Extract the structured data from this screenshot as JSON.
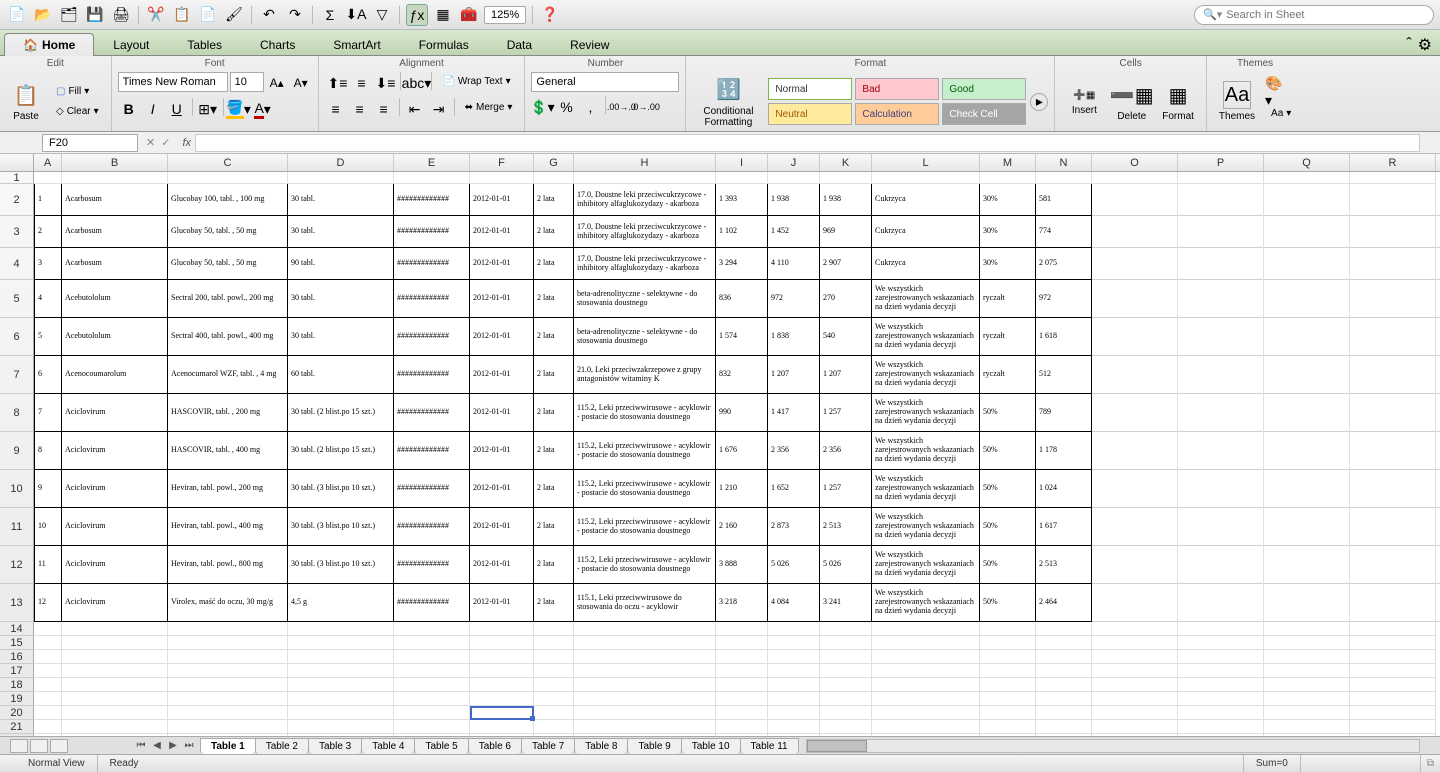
{
  "toolbar": {
    "zoom": "125%",
    "search_placeholder": "Search in Sheet"
  },
  "ribbon": {
    "tabs": [
      "Home",
      "Layout",
      "Tables",
      "Charts",
      "SmartArt",
      "Formulas",
      "Data",
      "Review"
    ],
    "active_tab": 0,
    "groups": {
      "edit": "Edit",
      "font": "Font",
      "alignment": "Alignment",
      "number": "Number",
      "format": "Format",
      "cells": "Cells",
      "themes": "Themes"
    },
    "paste": "Paste",
    "fill": "Fill",
    "clear": "Clear",
    "font_name": "Times New Roman",
    "font_size": "10",
    "wrap_text": "Wrap Text",
    "merge": "Merge",
    "number_format": "General",
    "cond_fmt": "Conditional Formatting",
    "styles": {
      "normal": "Normal",
      "bad": "Bad",
      "good": "Good",
      "neutral": "Neutral",
      "calc": "Calculation",
      "check": "Check Cell"
    },
    "insert": "Insert",
    "delete": "Delete",
    "format_btn": "Format",
    "themes_btn": "Themes",
    "aa": "Aa"
  },
  "formula": {
    "name_box": "F20",
    "fx": "fx"
  },
  "columns": [
    {
      "l": "A",
      "w": 28
    },
    {
      "l": "B",
      "w": 106
    },
    {
      "l": "C",
      "w": 120
    },
    {
      "l": "D",
      "w": 106
    },
    {
      "l": "E",
      "w": 76
    },
    {
      "l": "F",
      "w": 64
    },
    {
      "l": "G",
      "w": 40
    },
    {
      "l": "H",
      "w": 142
    },
    {
      "l": "I",
      "w": 52
    },
    {
      "l": "J",
      "w": 52
    },
    {
      "l": "K",
      "w": 52
    },
    {
      "l": "L",
      "w": 108
    },
    {
      "l": "M",
      "w": 56
    },
    {
      "l": "N",
      "w": 56
    },
    {
      "l": "O",
      "w": 86
    },
    {
      "l": "P",
      "w": 86
    },
    {
      "l": "Q",
      "w": 86
    },
    {
      "l": "R",
      "w": 86
    }
  ],
  "row_meta": [
    {
      "n": 1,
      "h": 12
    },
    {
      "n": 2,
      "h": 32
    },
    {
      "n": 3,
      "h": 32
    },
    {
      "n": 4,
      "h": 32
    },
    {
      "n": 5,
      "h": 38
    },
    {
      "n": 6,
      "h": 38
    },
    {
      "n": 7,
      "h": 38
    },
    {
      "n": 8,
      "h": 38
    },
    {
      "n": 9,
      "h": 38
    },
    {
      "n": 10,
      "h": 38
    },
    {
      "n": 11,
      "h": 38
    },
    {
      "n": 12,
      "h": 38
    },
    {
      "n": 13,
      "h": 38
    },
    {
      "n": 14,
      "h": 14
    },
    {
      "n": 15,
      "h": 14
    },
    {
      "n": 16,
      "h": 14
    },
    {
      "n": 17,
      "h": 14
    },
    {
      "n": 18,
      "h": 14
    },
    {
      "n": 19,
      "h": 14
    },
    {
      "n": 20,
      "h": 14
    },
    {
      "n": 21,
      "h": 14
    },
    {
      "n": 22,
      "h": 14
    }
  ],
  "data_rows": [
    {
      "r": 2,
      "A": "1",
      "B": "Acarbosum",
      "C": "Glucobay 100, tabl. , 100 mg",
      "D": "30 tabl.",
      "E": "#############",
      "F": "2012-01-01",
      "G": "2 lata",
      "H": "17.0, Doustne leki przeciwcukrzycowe - inhibitory alfaglukozydazy - akarboza",
      "I": "1 393",
      "J": "1 938",
      "K": "1 938",
      "L": "Cukrzyca",
      "M": "30%",
      "N": "581"
    },
    {
      "r": 3,
      "A": "2",
      "B": "Acarbosum",
      "C": "Glucobay 50, tabl. , 50 mg",
      "D": "30 tabl.",
      "E": "#############",
      "F": "2012-01-01",
      "G": "2 lata",
      "H": "17.0, Doustne leki przeciwcukrzycowe - inhibitory alfaglukozydazy - akarboza",
      "I": "1 102",
      "J": "1 452",
      "K": "969",
      "L": "Cukrzyca",
      "M": "30%",
      "N": "774"
    },
    {
      "r": 4,
      "A": "3",
      "B": "Acarbosum",
      "C": "Glucobay 50, tabl. , 50 mg",
      "D": "90 tabl.",
      "E": "#############",
      "F": "2012-01-01",
      "G": "2 lata",
      "H": "17.0, Doustne leki przeciwcukrzycowe - inhibitory alfaglukozydazy - akarboza",
      "I": "3 294",
      "J": "4 110",
      "K": "2 907",
      "L": "Cukrzyca",
      "M": "30%",
      "N": "2 075"
    },
    {
      "r": 5,
      "A": "4",
      "B": "Acebutololum",
      "C": "Sectral 200, tabl. powl., 200 mg",
      "D": "30 tabl.",
      "E": "#############",
      "F": "2012-01-01",
      "G": "2 lata",
      "H": "beta-adrenolityczne - selektywne - do stosowania doustnego",
      "I": "836",
      "J": "972",
      "K": "270",
      "L": "We wszystkich zarejestrowanych wskazaniach na dzień wydania decyzji",
      "M": "ryczałt",
      "N": "972"
    },
    {
      "r": 6,
      "A": "5",
      "B": "Acebutololum",
      "C": "Sectral 400, tabl. powl., 400 mg",
      "D": "30 tabl.",
      "E": "#############",
      "F": "2012-01-01",
      "G": "2 lata",
      "H": "beta-adrenolityczne - selektywne - do stosowania doustnego",
      "I": "1 574",
      "J": "1 838",
      "K": "540",
      "L": "We wszystkich zarejestrowanych wskazaniach na dzień wydania decyzji",
      "M": "ryczałt",
      "N": "1 618"
    },
    {
      "r": 7,
      "A": "6",
      "B": "Acenocoumarolum",
      "C": "Acenocumarol WZF, tabl. , 4 mg",
      "D": "60 tabl.",
      "E": "#############",
      "F": "2012-01-01",
      "G": "2 lata",
      "H": "21.0, Leki przeciwzakrzepowe z grupy antagonistów witaminy K",
      "I": "832",
      "J": "1 207",
      "K": "1 207",
      "L": "We wszystkich zarejestrowanych wskazaniach na dzień wydania decyzji",
      "M": "ryczałt",
      "N": "512"
    },
    {
      "r": 8,
      "A": "7",
      "B": "Aciclovirum",
      "C": "HASCOVIR, tabl. , 200 mg",
      "D": "30 tabl. (2 blist.po 15 szt.)",
      "E": "#############",
      "F": "2012-01-01",
      "G": "2 lata",
      "H": "115.2, Leki przeciwwirusowe - acyklowir - postacie do stosowania doustnego",
      "I": "990",
      "J": "1 417",
      "K": "1 257",
      "L": "We wszystkich zarejestrowanych wskazaniach na dzień wydania decyzji",
      "M": "50%",
      "N": "789"
    },
    {
      "r": 9,
      "A": "8",
      "B": "Aciclovirum",
      "C": "HASCOVIR, tabl. , 400 mg",
      "D": "30 tabl. (2 blist.po 15 szt.)",
      "E": "#############",
      "F": "2012-01-01",
      "G": "2 lata",
      "H": "115.2, Leki przeciwwirusowe - acyklowir - postacie do stosowania doustnego",
      "I": "1 676",
      "J": "2 356",
      "K": "2 356",
      "L": "We wszystkich zarejestrowanych wskazaniach na dzień wydania decyzji",
      "M": "50%",
      "N": "1 178"
    },
    {
      "r": 10,
      "A": "9",
      "B": "Aciclovirum",
      "C": "Heviran, tabl. powl., 200 mg",
      "D": "30 tabl. (3 blist.po 10 szt.)",
      "E": "#############",
      "F": "2012-01-01",
      "G": "2 lata",
      "H": "115.2, Leki przeciwwirusowe - acyklowir - postacie do stosowania doustnego",
      "I": "1 210",
      "J": "1 652",
      "K": "1 257",
      "L": "We wszystkich zarejestrowanych wskazaniach na dzień wydania decyzji",
      "M": "50%",
      "N": "1 024"
    },
    {
      "r": 11,
      "A": "10",
      "B": "Aciclovirum",
      "C": "Heviran, tabl. powl., 400 mg",
      "D": "30 tabl. (3 blist.po 10 szt.)",
      "E": "#############",
      "F": "2012-01-01",
      "G": "2 lata",
      "H": "115.2, Leki przeciwwirusowe - acyklowir - postacie do stosowania doustnego",
      "I": "2 160",
      "J": "2 873",
      "K": "2 513",
      "L": "We wszystkich zarejestrowanych wskazaniach na dzień wydania decyzji",
      "M": "50%",
      "N": "1 617"
    },
    {
      "r": 12,
      "A": "11",
      "B": "Aciclovirum",
      "C": "Heviran, tabl. powl., 800 mg",
      "D": "30 tabl. (3 blist.po 10 szt.)",
      "E": "#############",
      "F": "2012-01-01",
      "G": "2 lata",
      "H": "115.2, Leki przeciwwirusowe - acyklowir - postacie do stosowania doustnego",
      "I": "3 888",
      "J": "5 026",
      "K": "5 026",
      "L": "We wszystkich zarejestrowanych wskazaniach na dzień wydania decyzji",
      "M": "50%",
      "N": "2 513"
    },
    {
      "r": 13,
      "A": "12",
      "B": "Aciclovirum",
      "C": "Virolex, maść do oczu, 30 mg/g",
      "D": "4,5 g",
      "E": "#############",
      "F": "2012-01-01",
      "G": "2 lata",
      "H": "115.1, Leki przeciwwirusowe do stosowania do oczu - acyklowir",
      "I": "3 218",
      "J": "4 084",
      "K": "3 241",
      "L": "We wszystkich zarejestrowanych wskazaniach na dzień wydania decyzji",
      "M": "50%",
      "N": "2 464"
    }
  ],
  "sheet_tabs": [
    "Table 1",
    "Table 2",
    "Table 3",
    "Table 4",
    "Table 5",
    "Table 6",
    "Table 7",
    "Table 8",
    "Table 9",
    "Table 10",
    "Table 11"
  ],
  "active_sheet": 0,
  "status": {
    "view": "Normal View",
    "ready": "Ready",
    "sum": "Sum=0"
  },
  "selected": {
    "col": "F",
    "row": 20
  }
}
